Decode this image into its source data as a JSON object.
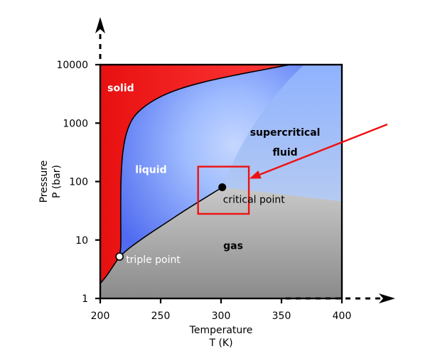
{
  "chart_data": {
    "type": "diagram",
    "title": "",
    "xlabel_line1": "Temperature",
    "xlabel_line2": "T (K)",
    "ylabel_line1": "Pressure",
    "ylabel_line2": "P (bar)",
    "x_scale": "linear",
    "y_scale": "log",
    "xlim": [
      200,
      400
    ],
    "ylim": [
      1,
      10000
    ],
    "x_ticks": [
      {
        "value": 200,
        "label": "200"
      },
      {
        "value": 250,
        "label": "250"
      },
      {
        "value": 300,
        "label": "300"
      },
      {
        "value": 350,
        "label": "350"
      },
      {
        "value": 400,
        "label": "400"
      }
    ],
    "y_ticks": [
      {
        "value": 1,
        "label": "1"
      },
      {
        "value": 10,
        "label": "10"
      },
      {
        "value": 100,
        "label": "100"
      },
      {
        "value": 1000,
        "label": "1000"
      },
      {
        "value": 10000,
        "label": "10000"
      }
    ],
    "regions": [
      {
        "name": "solid",
        "label": "solid",
        "color": "#ff1f1f",
        "label_color": "#ffffff"
      },
      {
        "name": "liquid",
        "label": "liquid",
        "color": "#6b8ef5",
        "label_color": "#ffffff"
      },
      {
        "name": "supercritical-fluid",
        "label_line1": "supercritical",
        "label_line2": "fluid",
        "color": "#a9c6ff",
        "label_color": "#000000"
      },
      {
        "name": "gas",
        "label": "gas",
        "color": "#b4b4b4",
        "label_color": "#000000"
      }
    ],
    "points": [
      {
        "name": "triple-point",
        "label": "triple point",
        "x": 216,
        "y": 5.2,
        "fill": "#ffffff",
        "label_color": "#ffffff"
      },
      {
        "name": "critical-point",
        "label": "critical point",
        "x": 301,
        "y": 80,
        "fill": "#000000",
        "label_color": "#000000"
      }
    ],
    "sublimation_curve": [
      [
        200,
        1.8
      ],
      [
        205,
        2.4
      ],
      [
        210,
        3.4
      ],
      [
        216,
        5.2
      ]
    ],
    "melting_curve": [
      [
        216,
        5.2
      ],
      [
        217,
        8
      ],
      [
        217,
        20
      ],
      [
        217,
        60
      ],
      [
        217.5,
        150
      ],
      [
        219,
        350
      ],
      [
        222,
        700
      ],
      [
        227,
        1200
      ],
      [
        235,
        1800
      ],
      [
        248,
        2700
      ],
      [
        265,
        3800
      ],
      [
        285,
        5000
      ],
      [
        310,
        6500
      ],
      [
        335,
        8200
      ],
      [
        357,
        10000
      ]
    ],
    "vaporization_curve": [
      [
        216,
        5.2
      ],
      [
        225,
        7.5
      ],
      [
        240,
        12.5
      ],
      [
        255,
        20
      ],
      [
        270,
        32
      ],
      [
        285,
        50
      ],
      [
        301,
        80
      ]
    ],
    "highlight_box": {
      "x": [
        281,
        323
      ],
      "y": [
        28,
        180
      ],
      "color": "#ee1111"
    },
    "arrow_color": "#ee1111",
    "curve_color": "#000000"
  }
}
